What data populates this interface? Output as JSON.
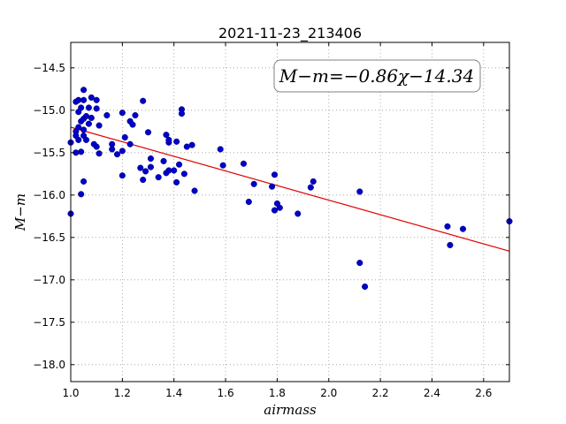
{
  "chart_data": {
    "type": "scatter",
    "title": "2021-11-23_213406",
    "xlabel": "airmass",
    "ylabel": "M−m",
    "xlim": [
      1.0,
      2.7
    ],
    "ylim": [
      -18.2,
      -14.2
    ],
    "y_inverted": true,
    "xticks": [
      "1.0",
      "1.2",
      "1.4",
      "1.6",
      "1.8",
      "2.0",
      "2.2",
      "2.4",
      "2.6"
    ],
    "yticks": [
      "-14.5",
      "-15.0",
      "-15.5",
      "-16.0",
      "-16.5",
      "-17.0",
      "-17.5",
      "-18.0"
    ],
    "grid": true,
    "annotation": "M−m=−0.86χ−14.34",
    "fit": {
      "slope": -0.86,
      "intercept": -14.34,
      "color": "#e00000"
    },
    "point_color": "#0000cc",
    "points": [
      [
        1.0,
        -15.38
      ],
      [
        1.0,
        -16.22
      ],
      [
        1.02,
        -14.9
      ],
      [
        1.02,
        -15.25
      ],
      [
        1.02,
        -15.5
      ],
      [
        1.02,
        -15.3
      ],
      [
        1.03,
        -14.88
      ],
      [
        1.03,
        -15.02
      ],
      [
        1.03,
        -15.2
      ],
      [
        1.03,
        -15.35
      ],
      [
        1.04,
        -15.49
      ],
      [
        1.04,
        -14.97
      ],
      [
        1.04,
        -15.13
      ],
      [
        1.04,
        -15.99
      ],
      [
        1.05,
        -14.76
      ],
      [
        1.05,
        -14.88
      ],
      [
        1.05,
        -15.23
      ],
      [
        1.05,
        -15.3
      ],
      [
        1.05,
        -15.1
      ],
      [
        1.05,
        -15.84
      ],
      [
        1.06,
        -15.07
      ],
      [
        1.06,
        -15.35
      ],
      [
        1.07,
        -14.97
      ],
      [
        1.07,
        -15.16
      ],
      [
        1.08,
        -15.09
      ],
      [
        1.08,
        -14.85
      ],
      [
        1.09,
        -15.4
      ],
      [
        1.1,
        -14.88
      ],
      [
        1.1,
        -14.98
      ],
      [
        1.1,
        -15.43
      ],
      [
        1.11,
        -15.51
      ],
      [
        1.11,
        -15.18
      ],
      [
        1.14,
        -15.06
      ],
      [
        1.16,
        -15.4
      ],
      [
        1.16,
        -15.46
      ],
      [
        1.18,
        -15.52
      ],
      [
        1.2,
        -15.03
      ],
      [
        1.2,
        -15.48
      ],
      [
        1.2,
        -15.77
      ],
      [
        1.21,
        -15.32
      ],
      [
        1.23,
        -15.4
      ],
      [
        1.23,
        -15.13
      ],
      [
        1.24,
        -15.17
      ],
      [
        1.25,
        -15.06
      ],
      [
        1.27,
        -15.68
      ],
      [
        1.28,
        -15.82
      ],
      [
        1.28,
        -14.89
      ],
      [
        1.29,
        -15.72
      ],
      [
        1.3,
        -15.26
      ],
      [
        1.31,
        -15.57
      ],
      [
        1.31,
        -15.67
      ],
      [
        1.34,
        -15.79
      ],
      [
        1.36,
        -15.6
      ],
      [
        1.37,
        -15.74
      ],
      [
        1.37,
        -15.29
      ],
      [
        1.38,
        -15.38
      ],
      [
        1.38,
        -15.35
      ],
      [
        1.38,
        -15.71
      ],
      [
        1.4,
        -15.71
      ],
      [
        1.41,
        -15.37
      ],
      [
        1.41,
        -15.85
      ],
      [
        1.42,
        -15.64
      ],
      [
        1.43,
        -14.99
      ],
      [
        1.43,
        -15.04
      ],
      [
        1.44,
        -15.75
      ],
      [
        1.45,
        -15.43
      ],
      [
        1.47,
        -15.41
      ],
      [
        1.48,
        -15.95
      ],
      [
        1.58,
        -15.46
      ],
      [
        1.59,
        -15.65
      ],
      [
        1.67,
        -15.63
      ],
      [
        1.69,
        -16.08
      ],
      [
        1.71,
        -15.87
      ],
      [
        1.78,
        -15.9
      ],
      [
        1.79,
        -16.18
      ],
      [
        1.79,
        -15.76
      ],
      [
        1.8,
        -16.1
      ],
      [
        1.81,
        -16.15
      ],
      [
        1.88,
        -16.22
      ],
      [
        1.93,
        -15.91
      ],
      [
        1.94,
        -15.84
      ],
      [
        2.12,
        -15.96
      ],
      [
        2.12,
        -16.8
      ],
      [
        2.14,
        -17.08
      ],
      [
        2.46,
        -16.37
      ],
      [
        2.47,
        -16.59
      ],
      [
        2.52,
        -16.4
      ],
      [
        2.7,
        -16.31
      ]
    ]
  }
}
